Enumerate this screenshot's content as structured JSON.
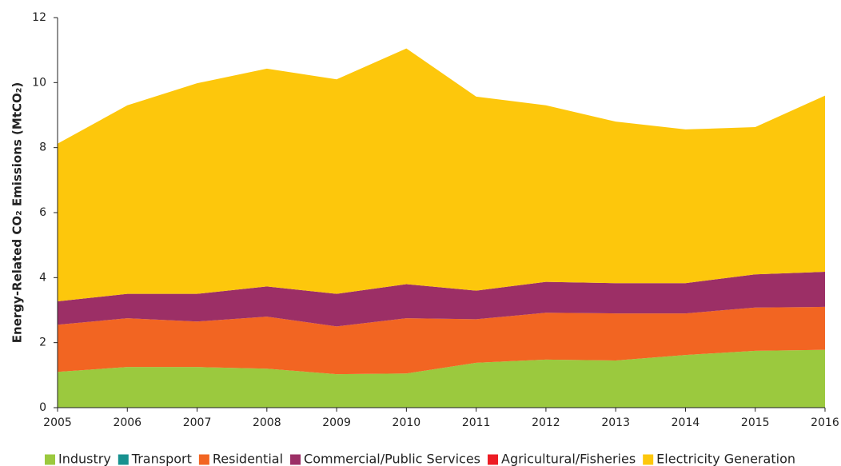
{
  "chart_data": {
    "type": "stacked_area",
    "y_label": "Energy-Related CO₂ Emissions (MtCO₂)",
    "x": [
      2005,
      2006,
      2007,
      2008,
      2009,
      2010,
      2011,
      2012,
      2013,
      2014,
      2015,
      2016
    ],
    "xlim": [
      2005,
      2016
    ],
    "xticks": [
      2005,
      2006,
      2007,
      2008,
      2009,
      2010,
      2011,
      2012,
      2013,
      2014,
      2015,
      2016
    ],
    "ylim": [
      0,
      12
    ],
    "yticks": [
      0,
      2,
      4,
      6,
      8,
      10,
      12
    ],
    "grid": false,
    "legend": "bottom",
    "series": [
      {
        "name": "Industry",
        "color": "#9bc93e",
        "values": [
          1.1,
          1.25,
          1.25,
          1.2,
          1.03,
          1.05,
          1.38,
          1.48,
          1.45,
          1.62,
          1.75,
          1.78
        ]
      },
      {
        "name": "Transport",
        "color": "#17918f",
        "values": [
          0,
          0,
          0,
          0,
          0,
          0,
          0,
          0,
          0,
          0,
          0,
          0
        ]
      },
      {
        "name": "Residential",
        "color": "#f26522",
        "values": [
          1.45,
          1.5,
          1.4,
          1.6,
          1.47,
          1.7,
          1.34,
          1.44,
          1.45,
          1.28,
          1.33,
          1.32
        ]
      },
      {
        "name": "Commercial/Public Services",
        "color": "#9c2f66",
        "values": [
          0.72,
          0.75,
          0.85,
          0.93,
          1.0,
          1.05,
          0.88,
          0.95,
          0.93,
          0.93,
          1.02,
          1.08
        ]
      },
      {
        "name": "Agricultural/Fisheries",
        "color": "#ed1c24",
        "values": [
          0,
          0,
          0,
          0,
          0,
          0,
          0,
          0,
          0,
          0,
          0,
          0
        ]
      },
      {
        "name": "Electricity Generation",
        "color": "#fdc70c",
        "values": [
          4.85,
          5.8,
          6.48,
          6.7,
          6.6,
          7.25,
          5.97,
          5.43,
          4.97,
          4.73,
          4.53,
          5.42
        ]
      }
    ]
  }
}
